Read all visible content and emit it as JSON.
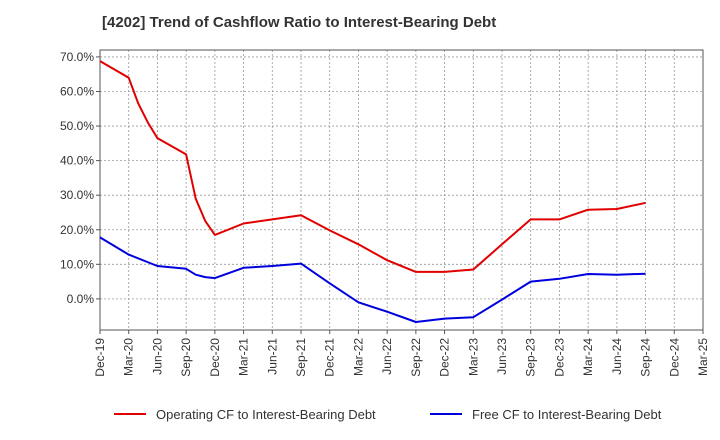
{
  "chart_data": {
    "type": "line",
    "title": "[4202]  Trend of Cashflow Ratio to Interest-Bearing Debt",
    "xlabel": "",
    "ylabel": "",
    "x_tick_labels": [
      "Dec-19",
      "Mar-20",
      "Jun-20",
      "Sep-20",
      "Dec-20",
      "Mar-21",
      "Jun-21",
      "Sep-21",
      "Dec-21",
      "Mar-22",
      "Jun-22",
      "Sep-22",
      "Dec-22",
      "Mar-23",
      "Jun-23",
      "Sep-23",
      "Dec-23",
      "Mar-24",
      "Jun-24",
      "Sep-24",
      "Dec-24",
      "Mar-25"
    ],
    "y_tick_labels": [
      "0.0%",
      "10.0%",
      "20.0%",
      "30.0%",
      "40.0%",
      "50.0%",
      "60.0%",
      "70.0%"
    ],
    "y_ticks": [
      0,
      10,
      20,
      30,
      40,
      50,
      60,
      70
    ],
    "ylim": [
      -9,
      72
    ],
    "grid": "dashed",
    "legend_position": "bottom",
    "series": [
      {
        "name": "Operating CF to Interest-Bearing Debt",
        "color": "#e00000",
        "points": [
          [
            "Dec-19",
            68.8
          ],
          [
            "Mar-20",
            64.0
          ],
          [
            "Apr-20",
            56.5
          ],
          [
            "May-20",
            51.0
          ],
          [
            "Jun-20",
            46.5
          ],
          [
            "Sep-20",
            41.8
          ],
          [
            "Oct-20",
            29.0
          ],
          [
            "Nov-20",
            22.5
          ],
          [
            "Dec-20",
            18.5
          ],
          [
            "Mar-21",
            21.8
          ],
          [
            "Jun-21",
            23.0
          ],
          [
            "Sep-21",
            24.2
          ],
          [
            "Dec-21",
            19.8
          ],
          [
            "Mar-22",
            15.8
          ],
          [
            "Jun-22",
            11.2
          ],
          [
            "Sep-22",
            7.8
          ],
          [
            "Dec-22",
            7.8
          ],
          [
            "Mar-23",
            8.5
          ],
          [
            "Jun-23",
            15.8
          ],
          [
            "Sep-23",
            23.0
          ],
          [
            "Dec-23",
            23.0
          ],
          [
            "Mar-24",
            25.8
          ],
          [
            "Jun-24",
            26.0
          ],
          [
            "Sep-24",
            27.8
          ]
        ]
      },
      {
        "name": "Free CF to Interest-Bearing Debt",
        "color": "#0000dd",
        "points": [
          [
            "Dec-19",
            17.8
          ],
          [
            "Mar-20",
            12.8
          ],
          [
            "Jun-20",
            9.5
          ],
          [
            "Sep-20",
            8.7
          ],
          [
            "Oct-20",
            7.0
          ],
          [
            "Nov-20",
            6.3
          ],
          [
            "Dec-20",
            6.0
          ],
          [
            "Mar-21",
            9.0
          ],
          [
            "Jun-21",
            9.5
          ],
          [
            "Sep-21",
            10.2
          ],
          [
            "Dec-21",
            4.5
          ],
          [
            "Mar-22",
            -1.0
          ],
          [
            "Jun-22",
            -3.7
          ],
          [
            "Sep-22",
            -6.7
          ],
          [
            "Dec-22",
            -5.7
          ],
          [
            "Mar-23",
            -5.3
          ],
          [
            "Jun-23",
            -0.2
          ],
          [
            "Sep-23",
            5.0
          ],
          [
            "Dec-23",
            5.8
          ],
          [
            "Mar-24",
            7.2
          ],
          [
            "Jun-24",
            7.0
          ],
          [
            "Sep-24",
            7.3
          ]
        ]
      }
    ]
  }
}
